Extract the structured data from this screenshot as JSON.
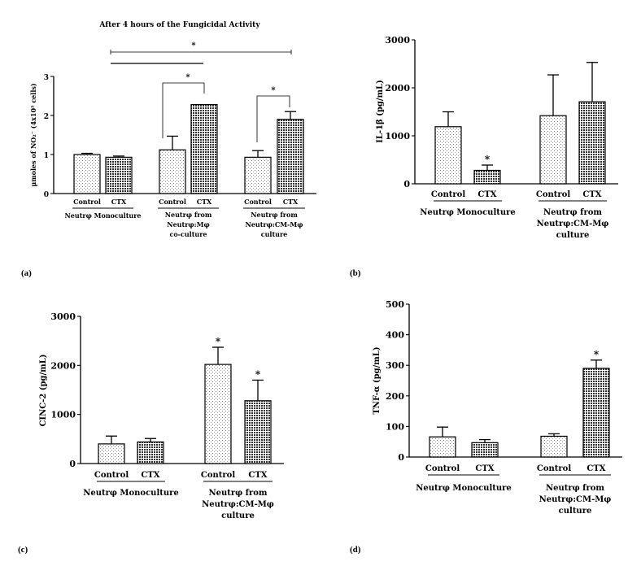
{
  "chart_data": [
    {
      "id": "a",
      "type": "bar",
      "panel_label": "(a)",
      "title": "After 4 hours of the Fungicidal Activity",
      "ylabel": "μmoles of NO₂⁻ (4x10⁵ cells)",
      "ylim": [
        0,
        3
      ],
      "yticks": [
        "0",
        "1",
        "2",
        "3"
      ],
      "categories": [
        "Control",
        "CTX",
        "Control",
        "CTX",
        "Control",
        "CTX"
      ],
      "values": [
        1.0,
        0.93,
        1.12,
        2.28,
        0.93,
        1.9
      ],
      "errors": [
        0.03,
        0.03,
        0.35,
        0.0,
        0.17,
        0.2
      ],
      "group_labels": [
        [
          "Neutrφ Monoculture"
        ],
        [
          "Neutrφ from",
          "Neutrφ:Mφ",
          "co-culture"
        ],
        [
          "Neutrφ from",
          "Neutrφ:CM-Mφ",
          "culture"
        ]
      ],
      "significance": [
        "*",
        "*",
        "*"
      ]
    },
    {
      "id": "b",
      "type": "bar",
      "panel_label": "(b)",
      "ylabel": "IL-1β (pg/mL)",
      "ylim": [
        0,
        3000
      ],
      "yticks": [
        "0",
        "1000",
        "2000",
        "3000"
      ],
      "categories": [
        "Control",
        "CTX",
        "Control",
        "CTX"
      ],
      "values": [
        1190,
        280,
        1420,
        1710
      ],
      "errors": [
        310,
        110,
        850,
        820
      ],
      "group_labels": [
        [
          "Neutrφ Monoculture"
        ],
        [
          "Neutrφ from",
          "Neutrφ:CM-Mφ",
          "culture"
        ]
      ],
      "significance": [
        "*"
      ]
    },
    {
      "id": "c",
      "type": "bar",
      "panel_label": "(c)",
      "ylabel": "CINC-2 (pg/mL)",
      "ylim": [
        0,
        3000
      ],
      "yticks": [
        "0",
        "1000",
        "2000",
        "3000"
      ],
      "categories": [
        "Control",
        "CTX",
        "Control",
        "CTX"
      ],
      "values": [
        400,
        440,
        2020,
        1280
      ],
      "errors": [
        160,
        70,
        350,
        420
      ],
      "group_labels": [
        [
          "Neutrφ Monoculture"
        ],
        [
          "Neutrφ from",
          "Neutrφ:CM-Mφ",
          "culture"
        ]
      ],
      "significance": [
        "*",
        "*"
      ]
    },
    {
      "id": "d",
      "type": "bar",
      "panel_label": "(d)",
      "ylabel": "TNF-α (pg/mL)",
      "ylim": [
        0,
        500
      ],
      "yticks": [
        "0",
        "100",
        "200",
        "300",
        "400",
        "500"
      ],
      "categories": [
        "Control",
        "CTX",
        "Control",
        "CTX"
      ],
      "values": [
        66,
        47,
        68,
        290
      ],
      "errors": [
        32,
        10,
        8,
        27
      ],
      "group_labels": [
        [
          "Neutrφ Monoculture"
        ],
        [
          "Neutrφ from",
          "Neutrφ:CM-Mφ",
          "culture"
        ]
      ],
      "significance": [
        "*"
      ]
    }
  ]
}
